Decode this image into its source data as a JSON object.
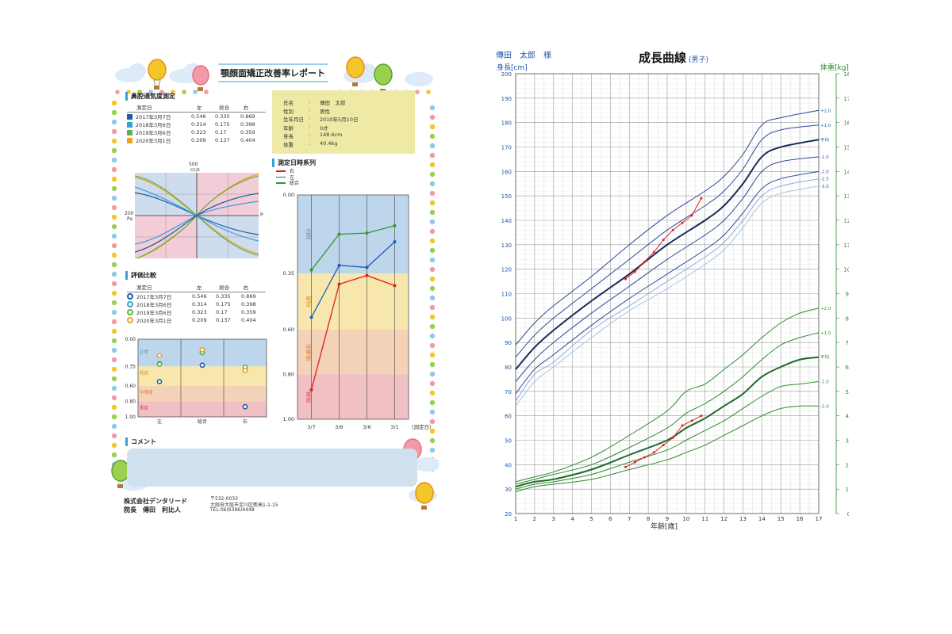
{
  "report": {
    "title": "顎顔面矯正改善率レポート",
    "nasal": {
      "heading": "鼻腔通気度測定",
      "col_headers": [
        "測定日",
        "左",
        "総合",
        "右"
      ],
      "rows": [
        {
          "date": "2017年3月7日",
          "left": "0.546",
          "total": "0.335",
          "right": "0.869",
          "color": "#1a5fa8"
        },
        {
          "date": "2018年3月6日",
          "left": "0.314",
          "total": "0.175",
          "right": "0.398",
          "color": "#3ba0d6"
        },
        {
          "date": "2019年3月6日",
          "left": "0.323",
          "total": "0.17",
          "right": "0.359",
          "color": "#5fb04a"
        },
        {
          "date": "2020年3月1日",
          "left": "0.209",
          "total": "0.137",
          "right": "0.404",
          "color": "#f0a020"
        }
      ]
    },
    "patient": [
      {
        "label": "氏名",
        "value": "傳田　太郎"
      },
      {
        "label": "性別",
        "value": "男性"
      },
      {
        "label": "生年月日",
        "value": "2010年5月10日"
      },
      {
        "label": "年齢",
        "value": "0才"
      },
      {
        "label": "身長",
        "value": "148.6cm"
      },
      {
        "label": "体重",
        "value": "40.4kg"
      }
    ],
    "flow_chart": {
      "top_label": "500",
      "top_unit": "cc/s",
      "left_label": "200",
      "left_unit": "Pa",
      "right_label": "P"
    },
    "time_series": {
      "heading": "測定日時系列",
      "legend": [
        {
          "name": "右",
          "color": "#dd1f1f"
        },
        {
          "name": "左",
          "color": "#1f5fb8"
        },
        {
          "name": "総合",
          "color": "#2e9a2e"
        }
      ],
      "y_ticks": [
        "0.00",
        "0.35",
        "0.60",
        "0.80",
        "1.00"
      ],
      "x_ticks": [
        "3/7",
        "3/6",
        "3/6",
        "3/1"
      ],
      "x_note": "(測定日)",
      "zones": [
        "正常",
        "軽度",
        "中等度",
        "重度"
      ]
    },
    "evaluation": {
      "heading": "評価比較",
      "col_headers": [
        "測定日",
        "左",
        "総合",
        "右"
      ],
      "rows": [
        {
          "date": "2017年3月7日",
          "left": "0.546",
          "total": "0.335",
          "right": "0.869",
          "color": "#1a5fa8"
        },
        {
          "date": "2018年3月6日",
          "left": "0.314",
          "total": "0.175",
          "right": "0.398",
          "color": "#3ba0d6"
        },
        {
          "date": "2019年3月6日",
          "left": "0.323",
          "total": "0.17",
          "right": "0.359",
          "color": "#5fb04a"
        },
        {
          "date": "2020年3月1日",
          "left": "0.209",
          "total": "0.137",
          "right": "0.404",
          "color": "#f0a020"
        }
      ],
      "y_ticks": [
        "0.00",
        "0.35",
        "0.60",
        "0.80",
        "1.00"
      ],
      "x_ticks": [
        "左",
        "総合",
        "右"
      ],
      "zones": [
        "正常",
        "軽度",
        "中等度",
        "重度"
      ]
    },
    "comment_heading": "コメント",
    "footer": {
      "company": "株式会社デンタリード",
      "director": "院長　傳田　利比人",
      "postal": "〒532-0033",
      "address": "大阪府大阪市淀川区新高1-1-15",
      "tel": "TEL:06(6396)4448"
    }
  },
  "growth": {
    "patient_name": "傳田　太郎　様",
    "title": "成長曲線",
    "subtitle": "(男子)",
    "y_left_label": "身長[cm]",
    "y_right_label": "体重[kg]",
    "x_label": "年齢[歳]",
    "height_sd_labels": [
      "+2.0",
      "+1.0",
      "平均",
      "-1.0",
      "-2.0",
      "-2.5",
      "-3.0"
    ],
    "weight_sd_labels": [
      "+2.0",
      "+1.0",
      "平均",
      "-1.0",
      "-2.0"
    ]
  },
  "chart_data": [
    {
      "type": "line",
      "title": "測定日時系列",
      "categories": [
        "3/7",
        "3/6",
        "3/6",
        "3/1"
      ],
      "series": [
        {
          "name": "右",
          "values": [
            0.869,
            0.398,
            0.359,
            0.404
          ]
        },
        {
          "name": "左",
          "values": [
            0.546,
            0.314,
            0.323,
            0.209
          ]
        },
        {
          "name": "総合",
          "values": [
            0.335,
            0.175,
            0.17,
            0.137
          ]
        }
      ],
      "ylim": [
        0,
        1
      ],
      "y_inverted": true
    },
    {
      "type": "scatter",
      "title": "評価比較",
      "categories": [
        "左",
        "総合",
        "右"
      ],
      "series": [
        {
          "name": "2017年3月7日",
          "values": [
            0.546,
            0.335,
            0.869
          ]
        },
        {
          "name": "2018年3月6日",
          "values": [
            0.314,
            0.175,
            0.398
          ]
        },
        {
          "name": "2019年3月6日",
          "values": [
            0.323,
            0.17,
            0.359
          ]
        },
        {
          "name": "2020年3月1日",
          "values": [
            0.209,
            0.137,
            0.404
          ]
        }
      ],
      "ylim": [
        0,
        1
      ],
      "y_inverted": true
    },
    {
      "type": "line",
      "title": "成長曲線",
      "xlabel": "年齢[歳]",
      "ylabel": "身長[cm]",
      "y2label": "体重[kg]",
      "xlim": [
        1,
        17
      ],
      "ylim": [
        20,
        200
      ],
      "y2lim": [
        0,
        180
      ],
      "height_curves": [
        {
          "sd": "+2.0",
          "x": [
            1,
            2,
            3,
            5,
            7,
            9,
            11,
            12,
            13,
            14,
            15,
            17
          ],
          "y": [
            89,
            98,
            105,
            117,
            130,
            142,
            152,
            158,
            167,
            179,
            182,
            185
          ]
        },
        {
          "sd": "+1.0",
          "x": [
            1,
            2,
            3,
            5,
            7,
            9,
            11,
            12,
            13,
            14,
            15,
            17
          ],
          "y": [
            84,
            93,
            100,
            112,
            124,
            136,
            146,
            152,
            161,
            173,
            177,
            179
          ]
        },
        {
          "sd": "平均",
          "x": [
            1,
            2,
            3,
            5,
            7,
            9,
            11,
            12,
            13,
            14,
            15,
            17
          ],
          "y": [
            79,
            88,
            95,
            107,
            118,
            130,
            140,
            146,
            155,
            166,
            170,
            173
          ]
        },
        {
          "sd": "-1.0",
          "x": [
            1,
            2,
            3,
            5,
            7,
            9,
            11,
            12,
            13,
            14,
            15,
            17
          ],
          "y": [
            74,
            83,
            90,
            102,
            113,
            124,
            134,
            140,
            149,
            160,
            164,
            166
          ]
        },
        {
          "sd": "-2.0",
          "x": [
            1,
            2,
            3,
            5,
            7,
            9,
            11,
            12,
            13,
            14,
            15,
            17
          ],
          "y": [
            69,
            79,
            85,
            97,
            108,
            118,
            128,
            134,
            143,
            153,
            157,
            160
          ]
        },
        {
          "sd": "-2.5",
          "x": [
            1,
            2,
            3,
            5,
            7,
            9,
            11,
            12,
            13,
            14,
            15,
            17
          ],
          "y": [
            66,
            77,
            82,
            95,
            105,
            115,
            125,
            131,
            140,
            150,
            154,
            157
          ]
        },
        {
          "sd": "-3.0",
          "x": [
            1,
            2,
            3,
            5,
            7,
            9,
            11,
            12,
            13,
            14,
            15,
            17
          ],
          "y": [
            64,
            74,
            80,
            92,
            103,
            112,
            122,
            128,
            137,
            147,
            151,
            154
          ]
        }
      ],
      "weight_curves": [
        {
          "sd": "+2.0",
          "x": [
            1,
            2,
            3,
            5,
            7,
            9,
            10,
            11,
            12,
            13,
            14,
            15,
            16,
            17
          ],
          "y": [
            13,
            15,
            17,
            23,
            32,
            42,
            50,
            53,
            59,
            65,
            72,
            78,
            82,
            84
          ]
        },
        {
          "sd": "+1.0",
          "x": [
            1,
            2,
            3,
            5,
            7,
            9,
            10,
            11,
            12,
            13,
            14,
            15,
            16,
            17
          ],
          "y": [
            12,
            14,
            16,
            20,
            27,
            35,
            41,
            45,
            50,
            56,
            63,
            69,
            72,
            74
          ]
        },
        {
          "sd": "平均",
          "x": [
            1,
            2,
            3,
            5,
            7,
            9,
            10,
            11,
            12,
            13,
            14,
            15,
            16,
            17
          ],
          "y": [
            11,
            13,
            14,
            18,
            24,
            30,
            35,
            39,
            44,
            49,
            56,
            60,
            63,
            64
          ]
        },
        {
          "sd": "-1.0",
          "x": [
            1,
            2,
            3,
            5,
            7,
            9,
            10,
            11,
            12,
            13,
            14,
            15,
            16,
            17
          ],
          "y": [
            10,
            12,
            13,
            16,
            21,
            26,
            30,
            34,
            38,
            43,
            48,
            52,
            53,
            54
          ]
        },
        {
          "sd": "-2.0",
          "x": [
            1,
            2,
            3,
            5,
            7,
            9,
            10,
            11,
            12,
            13,
            14,
            15,
            16,
            17
          ],
          "y": [
            9,
            11,
            12,
            14,
            18,
            22,
            25,
            28,
            32,
            36,
            40,
            43,
            44,
            44
          ]
        }
      ],
      "patient_height": {
        "x": [
          6.8,
          7.3,
          7.8,
          8.3,
          8.8,
          9.3,
          9.8,
          10.3,
          10.8
        ],
        "y": [
          116,
          119,
          123,
          127,
          132,
          136,
          139,
          142,
          149
        ]
      },
      "patient_weight": {
        "x": [
          6.8,
          7.3,
          7.8,
          8.3,
          8.8,
          9.3,
          9.8,
          10.3,
          10.8
        ],
        "y": [
          19,
          21,
          23,
          25,
          28,
          31,
          36,
          38,
          40
        ]
      }
    }
  ]
}
